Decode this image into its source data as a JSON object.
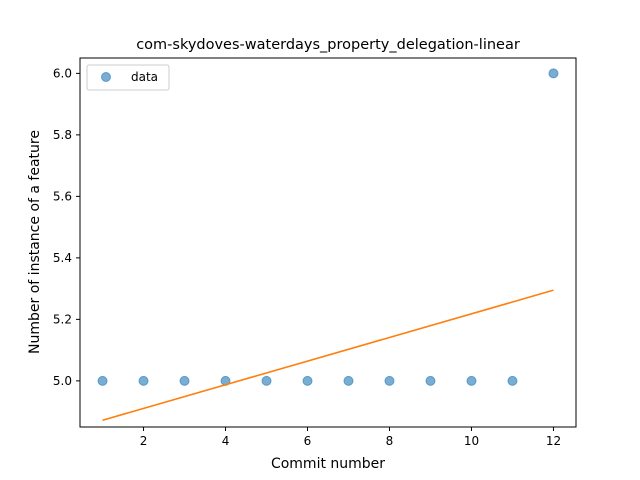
{
  "chart_data": {
    "type": "scatter",
    "title": "com-skydoves-waterdays_property_delegation-linear",
    "xlabel": "Commit number",
    "ylabel": "Number of instance of a feature",
    "xlim": [
      0.45,
      12.55
    ],
    "ylim": [
      4.85,
      6.05
    ],
    "xticks": [
      2,
      4,
      6,
      8,
      10,
      12
    ],
    "yticks": [
      5.0,
      5.2,
      5.4,
      5.6,
      5.8,
      6.0
    ],
    "ytick_labels": [
      "5.0",
      "5.2",
      "5.4",
      "5.6",
      "5.8",
      "6.0"
    ],
    "grid": false,
    "legend_position": "top-left",
    "series": [
      {
        "name": "data",
        "kind": "scatter",
        "color": "#1f77b4",
        "x": [
          1,
          2,
          3,
          4,
          5,
          6,
          7,
          8,
          9,
          10,
          11,
          12
        ],
        "y": [
          5,
          5,
          5,
          5,
          5,
          5,
          5,
          5,
          5,
          5,
          5,
          6
        ]
      },
      {
        "kind": "line",
        "color": "#ff7f0e",
        "x": [
          1,
          12
        ],
        "y": [
          4.872,
          5.295
        ]
      }
    ]
  }
}
